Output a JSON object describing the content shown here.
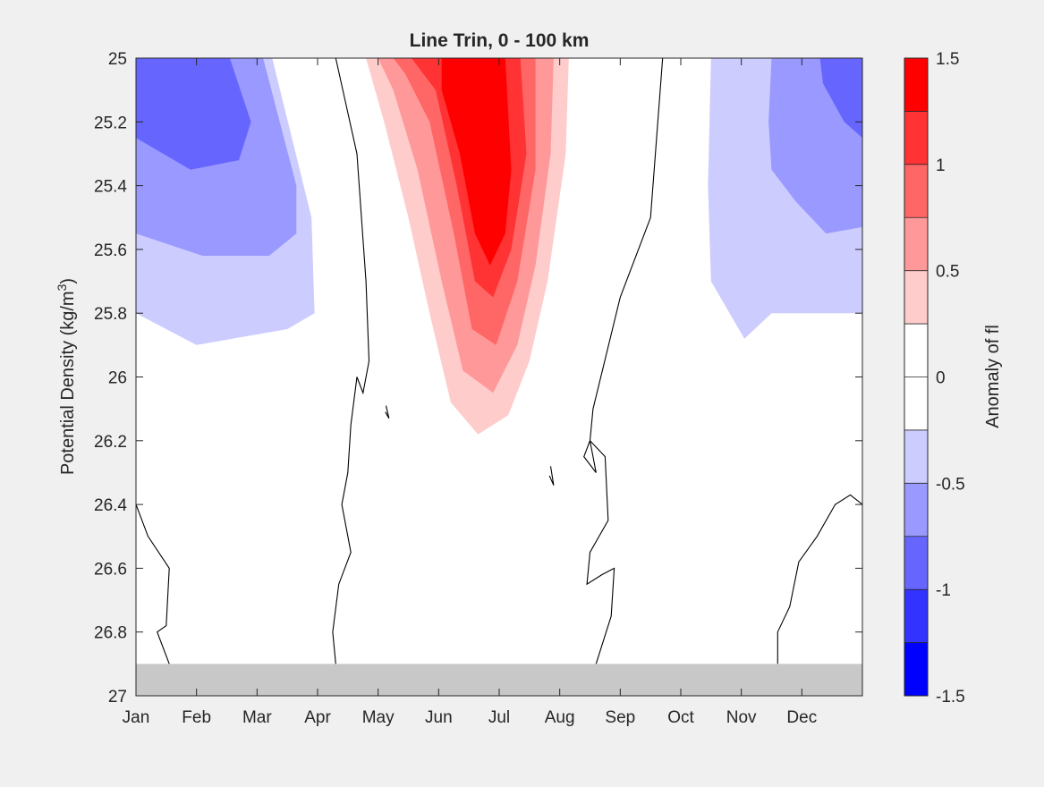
{
  "chart_data": {
    "type": "heatmap",
    "subtype": "filled-contour",
    "title": "Line Trin, 0 - 100 km",
    "ylabel": "Potential Density (kg/m",
    "ylabel_sup": "3",
    "ylabel_close": ")",
    "x_ticks": [
      "Jan",
      "Feb",
      "Mar",
      "Apr",
      "May",
      "Jun",
      "Jul",
      "Aug",
      "Sep",
      "Oct",
      "Nov",
      "Dec"
    ],
    "x_months": [
      1,
      2,
      3,
      4,
      5,
      6,
      7,
      8,
      9,
      10,
      11,
      12
    ],
    "xlim": [
      1,
      13
    ],
    "y_ticks": [
      "25",
      "25.2",
      "25.4",
      "25.6",
      "25.8",
      "26",
      "26.2",
      "26.4",
      "26.6",
      "26.8",
      "27"
    ],
    "y_values": [
      25,
      25.2,
      25.4,
      25.6,
      25.8,
      26,
      26.2,
      26.4,
      26.6,
      26.8,
      27
    ],
    "ylim": [
      25,
      27
    ],
    "y_reversed": true,
    "colorbar": {
      "label": "Anomaly of fl",
      "ticks": [
        "1.5",
        "1",
        "0.5",
        "0",
        "-0.5",
        "-1",
        "-1.5"
      ],
      "tick_values": [
        1.5,
        1,
        0.5,
        0,
        -0.5,
        -1,
        -1.5
      ],
      "clim": [
        -1.5,
        1.5
      ],
      "bands": [
        {
          "from": 1.25,
          "to": 1.5,
          "color": "#ff0000"
        },
        {
          "from": 1.0,
          "to": 1.25,
          "color": "#ff3333"
        },
        {
          "from": 0.75,
          "to": 1.0,
          "color": "#ff6666"
        },
        {
          "from": 0.5,
          "to": 0.75,
          "color": "#ff9999"
        },
        {
          "from": 0.25,
          "to": 0.5,
          "color": "#ffcccc"
        },
        {
          "from": 0.0,
          "to": 0.25,
          "color": "#ffffff"
        },
        {
          "from": -0.25,
          "to": 0.0,
          "color": "#ffffff"
        },
        {
          "from": -0.5,
          "to": -0.25,
          "color": "#ccccff"
        },
        {
          "from": -0.75,
          "to": -0.5,
          "color": "#9999ff"
        },
        {
          "from": -1.0,
          "to": -0.75,
          "color": "#6666ff"
        },
        {
          "from": -1.25,
          "to": -1.0,
          "color": "#3333ff"
        },
        {
          "from": -1.5,
          "to": -1.25,
          "color": "#0000ff"
        }
      ]
    },
    "no_data_region": {
      "y_from": 26.9,
      "y_to": 27,
      "color": "#c8c8c8"
    },
    "regions": [
      {
        "level": -0.25,
        "color": "#ccccff",
        "points": [
          [
            1,
            25
          ],
          [
            3.25,
            25
          ],
          [
            3.9,
            25.5
          ],
          [
            3.95,
            25.8
          ],
          [
            3.5,
            25.85
          ],
          [
            2,
            25.9
          ],
          [
            1,
            25.8
          ]
        ]
      },
      {
        "level": -0.5,
        "color": "#9999ff",
        "points": [
          [
            1,
            25
          ],
          [
            3.1,
            25
          ],
          [
            3.65,
            25.4
          ],
          [
            3.65,
            25.55
          ],
          [
            3.2,
            25.62
          ],
          [
            2.1,
            25.62
          ],
          [
            1,
            25.55
          ]
        ]
      },
      {
        "level": -0.75,
        "color": "#6666ff",
        "points": [
          [
            1,
            25
          ],
          [
            2.55,
            25
          ],
          [
            2.9,
            25.2
          ],
          [
            2.7,
            25.32
          ],
          [
            1.9,
            25.35
          ],
          [
            1,
            25.25
          ]
        ]
      },
      {
        "level": -0.25,
        "color": "#ccccff",
        "points": [
          [
            10.5,
            25
          ],
          [
            13,
            25
          ],
          [
            13,
            25.8
          ],
          [
            11.5,
            25.8
          ],
          [
            11.05,
            25.88
          ],
          [
            10.5,
            25.7
          ],
          [
            10.45,
            25.4
          ]
        ]
      },
      {
        "level": -0.5,
        "color": "#9999ff",
        "points": [
          [
            11.5,
            25
          ],
          [
            13,
            25
          ],
          [
            13,
            25.53
          ],
          [
            12.4,
            25.55
          ],
          [
            11.9,
            25.45
          ],
          [
            11.5,
            25.35
          ],
          [
            11.45,
            25.2
          ]
        ]
      },
      {
        "level": -0.75,
        "color": "#6666ff",
        "points": [
          [
            12.3,
            25
          ],
          [
            13,
            25
          ],
          [
            13,
            25.25
          ],
          [
            12.7,
            25.2
          ],
          [
            12.35,
            25.08
          ]
        ]
      },
      {
        "level": 0.25,
        "color": "#ffcccc",
        "points": [
          [
            4.8,
            25
          ],
          [
            8.15,
            25
          ],
          [
            8.1,
            25.3
          ],
          [
            7.8,
            25.7
          ],
          [
            7.5,
            25.95
          ],
          [
            7.15,
            26.12
          ],
          [
            6.65,
            26.18
          ],
          [
            6.2,
            26.08
          ],
          [
            5.85,
            25.8
          ],
          [
            5.5,
            25.5
          ],
          [
            5.1,
            25.2
          ]
        ]
      },
      {
        "level": 0.5,
        "color": "#ff9999",
        "points": [
          [
            5.0,
            25
          ],
          [
            7.9,
            25
          ],
          [
            7.85,
            25.3
          ],
          [
            7.6,
            25.65
          ],
          [
            7.3,
            25.9
          ],
          [
            6.9,
            26.05
          ],
          [
            6.4,
            25.98
          ],
          [
            6.05,
            25.7
          ],
          [
            5.65,
            25.35
          ],
          [
            5.25,
            25.1
          ]
        ]
      },
      {
        "level": 0.75,
        "color": "#ff6666",
        "points": [
          [
            5.25,
            25
          ],
          [
            7.6,
            25
          ],
          [
            7.6,
            25.35
          ],
          [
            7.3,
            25.7
          ],
          [
            6.95,
            25.9
          ],
          [
            6.55,
            25.85
          ],
          [
            6.25,
            25.55
          ],
          [
            5.85,
            25.2
          ],
          [
            5.45,
            25.05
          ]
        ]
      },
      {
        "level": 1.0,
        "color": "#ff3333",
        "points": [
          [
            5.55,
            25
          ],
          [
            7.35,
            25
          ],
          [
            7.45,
            25.3
          ],
          [
            7.2,
            25.6
          ],
          [
            6.9,
            25.75
          ],
          [
            6.6,
            25.7
          ],
          [
            6.3,
            25.4
          ],
          [
            5.95,
            25.1
          ]
        ]
      },
      {
        "level": 1.25,
        "color": "#ff0000",
        "points": [
          [
            6.05,
            25
          ],
          [
            7.1,
            25
          ],
          [
            7.2,
            25.35
          ],
          [
            7.1,
            25.55
          ],
          [
            6.85,
            25.65
          ],
          [
            6.6,
            25.55
          ],
          [
            6.35,
            25.3
          ],
          [
            6.05,
            25.1
          ]
        ]
      }
    ],
    "zero_contours": [
      [
        [
          4.3,
          25
        ],
        [
          4.65,
          25.3
        ],
        [
          4.8,
          25.7
        ],
        [
          4.85,
          25.95
        ],
        [
          4.75,
          26.05
        ],
        [
          4.65,
          26.0
        ],
        [
          4.55,
          26.15
        ],
        [
          4.5,
          26.3
        ],
        [
          4.4,
          26.4
        ],
        [
          4.55,
          26.55
        ],
        [
          4.35,
          26.65
        ],
        [
          4.25,
          26.8
        ],
        [
          4.3,
          26.9
        ]
      ],
      [
        [
          9.7,
          25
        ],
        [
          9.5,
          25.5
        ],
        [
          9.0,
          25.75
        ],
        [
          8.55,
          26.1
        ],
        [
          8.5,
          26.2
        ],
        [
          8.6,
          26.3
        ],
        [
          8.4,
          26.25
        ],
        [
          8.5,
          26.2
        ],
        [
          8.75,
          26.25
        ],
        [
          8.8,
          26.45
        ],
        [
          8.5,
          26.55
        ],
        [
          8.45,
          26.65
        ],
        [
          8.7,
          26.62
        ],
        [
          8.9,
          26.6
        ],
        [
          8.85,
          26.75
        ],
        [
          8.6,
          26.9
        ]
      ],
      [
        [
          1,
          26.4
        ],
        [
          1.2,
          26.5
        ],
        [
          1.55,
          26.6
        ],
        [
          1.5,
          26.78
        ],
        [
          1.35,
          26.8
        ],
        [
          1.55,
          26.9
        ]
      ],
      [
        [
          13,
          26.4
        ],
        [
          12.8,
          26.37
        ],
        [
          12.55,
          26.4
        ],
        [
          12.25,
          26.5
        ],
        [
          11.95,
          26.58
        ],
        [
          11.8,
          26.72
        ],
        [
          11.6,
          26.8
        ],
        [
          11.6,
          26.9
        ]
      ],
      [
        [
          5.13,
          26.09
        ],
        [
          5.18,
          26.13
        ],
        [
          5.12,
          26.11
        ]
      ],
      [
        [
          7.85,
          26.28
        ],
        [
          7.9,
          26.34
        ],
        [
          7.83,
          26.31
        ]
      ]
    ]
  }
}
